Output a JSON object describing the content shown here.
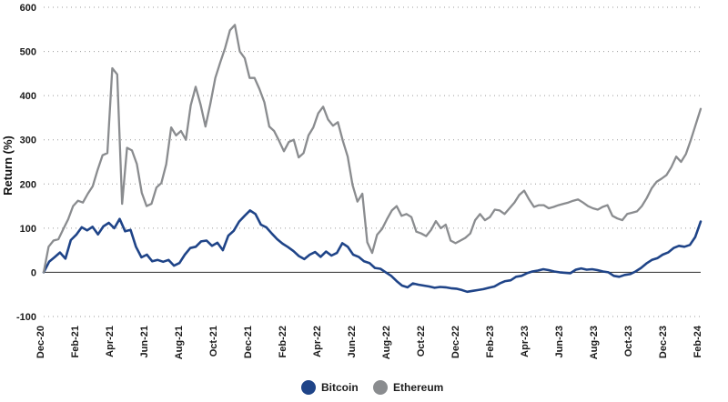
{
  "chart_data": {
    "type": "line",
    "title": "",
    "xlabel": "",
    "ylabel": "Return (%)",
    "ylim": [
      -100,
      600
    ],
    "y_ticks": [
      600,
      500,
      400,
      300,
      200,
      100,
      0,
      -100
    ],
    "x_ticks": [
      "Dec-20",
      "Feb-21",
      "Apr-21",
      "Jun-21",
      "Aug-21",
      "Oct-21",
      "Dec-21",
      "Feb-22",
      "Apr-22",
      "Jun-22",
      "Aug-22",
      "Oct-22",
      "Dec-22",
      "Feb-23",
      "Apr-23",
      "Jun-23",
      "Aug-23",
      "Oct-23",
      "Dec-23",
      "Feb-24"
    ],
    "grid": true,
    "legend_position": "bottom-center",
    "series": [
      {
        "name": "Bitcoin",
        "color": "#1f4488",
        "values": [
          0,
          24,
          34,
          45,
          31,
          73,
          85,
          102,
          95,
          103,
          86,
          104,
          112,
          100,
          121,
          93,
          96,
          58,
          34,
          40,
          25,
          28,
          24,
          28,
          15,
          21,
          40,
          55,
          58,
          70,
          72,
          60,
          67,
          50,
          83,
          94,
          115,
          128,
          140,
          132,
          108,
          102,
          88,
          75,
          65,
          57,
          48,
          37,
          30,
          40,
          46,
          35,
          47,
          38,
          44,
          66,
          58,
          40,
          35,
          25,
          21,
          10,
          8,
          0,
          -8,
          -20,
          -30,
          -34,
          -25,
          -28,
          -30,
          -32,
          -35,
          -33,
          -34,
          -36,
          -37,
          -40,
          -44,
          -42,
          -40,
          -38,
          -35,
          -32,
          -25,
          -20,
          -18,
          -10,
          -8,
          -2,
          2,
          4,
          7,
          5,
          2,
          0,
          -1,
          -2,
          6,
          9,
          6,
          7,
          5,
          2,
          0,
          -8,
          -10,
          -6,
          -4,
          2,
          10,
          20,
          28,
          32,
          40,
          45,
          55,
          60,
          58,
          62,
          80,
          115
        ]
      },
      {
        "name": "Ethereum",
        "color": "#8a8c8f",
        "values": [
          0,
          58,
          72,
          75,
          98,
          120,
          150,
          162,
          158,
          178,
          195,
          232,
          265,
          270,
          462,
          448,
          155,
          282,
          276,
          245,
          180,
          150,
          155,
          192,
          202,
          245,
          328,
          310,
          320,
          300,
          378,
          420,
          380,
          330,
          382,
          440,
          475,
          508,
          548,
          560,
          500,
          485,
          440,
          440,
          415,
          385,
          330,
          320,
          298,
          274,
          295,
          300,
          260,
          270,
          310,
          328,
          360,
          375,
          346,
          332,
          340,
          298,
          262,
          198,
          160,
          178,
          68,
          44,
          85,
          98,
          120,
          140,
          150,
          128,
          132,
          125,
          92,
          88,
          82,
          96,
          116,
          100,
          108,
          72,
          66,
          72,
          78,
          88,
          118,
          132,
          118,
          125,
          142,
          140,
          132,
          145,
          158,
          175,
          185,
          165,
          148,
          152,
          152,
          145,
          148,
          152,
          155,
          158,
          162,
          165,
          158,
          150,
          145,
          142,
          148,
          152,
          128,
          122,
          118,
          132,
          135,
          138,
          150,
          168,
          190,
          205,
          212,
          220,
          238,
          262,
          250,
          268,
          300,
          335,
          370
        ]
      }
    ]
  }
}
